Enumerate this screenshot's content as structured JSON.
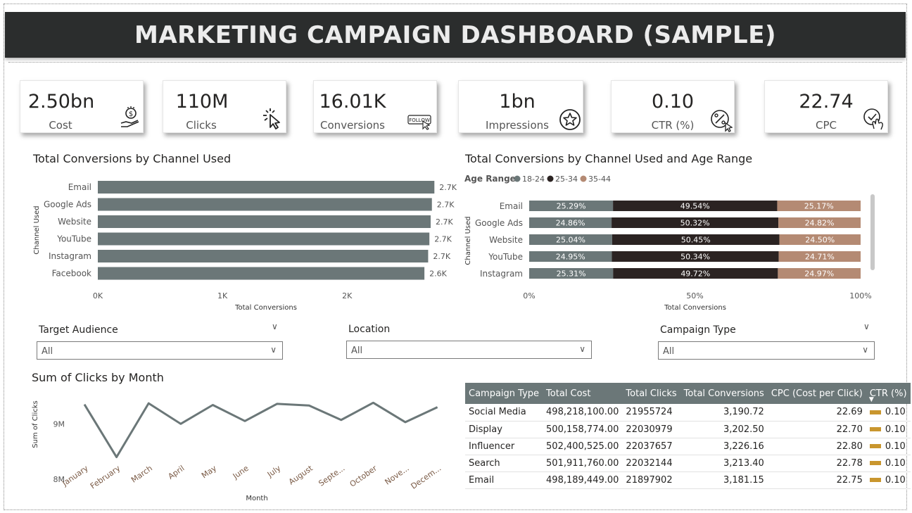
{
  "header": {
    "title": "MARKETING CAMPAIGN DASHBOARD (SAMPLE)"
  },
  "kpis": [
    {
      "value": "2.50bn",
      "label": "Cost",
      "icon": "money-hand-icon"
    },
    {
      "value": "110M",
      "label": "Clicks",
      "icon": "cursor-click-icon"
    },
    {
      "value": "16.01K",
      "label": "Conversions",
      "icon": "follow-icon",
      "icon_text": "FOLLOW"
    },
    {
      "value": "1bn",
      "label": "Impressions",
      "icon": "star-circle-icon"
    },
    {
      "value": "0.10",
      "label": "CTR (%)",
      "icon": "percent-cursor-icon"
    },
    {
      "value": "22.74",
      "label": "CPC",
      "icon": "check-hand-icon"
    }
  ],
  "colors": {
    "bar": "#6b7778",
    "age_18_24": "#6b7778",
    "age_25_34": "#2b2322",
    "age_35_44": "#b48a73",
    "line": "#6b7778",
    "ctr_bar": "#c9962e"
  },
  "chart_data": [
    {
      "type": "bar",
      "orientation": "horizontal",
      "title": "Total Conversions by Channel Used",
      "xlabel": "Total Conversions",
      "ylabel": "Channel Used",
      "categories": [
        "Email",
        "Google Ads",
        "Website",
        "YouTube",
        "Instagram",
        "Facebook"
      ],
      "values": [
        2700,
        2680,
        2670,
        2660,
        2650,
        2620
      ],
      "data_labels": [
        "2.7K",
        "2.7K",
        "2.7K",
        "2.7K",
        "2.7K",
        "2.6K"
      ],
      "xlim": [
        0,
        2800
      ],
      "xticks": [
        0,
        1000,
        2000
      ],
      "xtick_labels": [
        "0K",
        "1K",
        "2K"
      ],
      "grid": false
    },
    {
      "type": "bar",
      "orientation": "horizontal",
      "stacked": "100%",
      "title": "Total Conversions by Channel Used and Age Range",
      "xlabel": "Total Conversions",
      "ylabel": "Channel Used",
      "legend_title": "Age Range",
      "legend_position": "top-left",
      "categories": [
        "Email",
        "Google Ads",
        "Website",
        "YouTube",
        "Instagram"
      ],
      "series": [
        {
          "name": "18-24",
          "values": [
            25.29,
            24.86,
            25.04,
            24.95,
            25.31
          ]
        },
        {
          "name": "25-34",
          "values": [
            49.54,
            50.32,
            50.45,
            50.34,
            49.72
          ]
        },
        {
          "name": "35-44",
          "values": [
            25.17,
            24.82,
            24.5,
            24.71,
            24.97
          ]
        }
      ],
      "xticks": [
        0,
        50,
        100
      ],
      "xtick_labels": [
        "0%",
        "50%",
        "100%"
      ]
    },
    {
      "type": "line",
      "title": "Sum of Clicks by Month",
      "xlabel": "Month",
      "ylabel": "Sum of Clicks",
      "categories": [
        "January",
        "February",
        "March",
        "April",
        "May",
        "June",
        "July",
        "August",
        "Septe...",
        "October",
        "Nove...",
        "Decem..."
      ],
      "values": [
        9350000,
        8400000,
        9370000,
        9000000,
        9340000,
        9050000,
        9360000,
        9330000,
        9070000,
        9380000,
        9030000,
        9300000
      ],
      "ylim": [
        7950000,
        9600000
      ],
      "yticks": [
        8000000,
        9000000
      ],
      "ytick_labels": [
        "8M",
        "9M"
      ]
    }
  ],
  "slicers": [
    {
      "title": "Target Audience",
      "value": "All"
    },
    {
      "title": "Location",
      "value": "All"
    },
    {
      "title": "Campaign Type",
      "value": "All"
    }
  ],
  "table": {
    "headers": [
      "Campaign Type",
      "Total Cost",
      "Total Clicks",
      "Total Conversions",
      "CPC (Cost per Click)",
      "CTR (%)"
    ],
    "rows": [
      [
        "Social Media",
        "498,218,100.00",
        "21955724",
        "3,190.72",
        "22.69",
        "0.10"
      ],
      [
        "Display",
        "500,158,774.00",
        "22030979",
        "3,202.50",
        "22.70",
        "0.10"
      ],
      [
        "Influencer",
        "502,400,525.00",
        "22037657",
        "3,226.16",
        "22.80",
        "0.10"
      ],
      [
        "Search",
        "501,911,760.00",
        "22032144",
        "3,213.40",
        "22.78",
        "0.10"
      ],
      [
        "Email",
        "498,189,449.00",
        "21897902",
        "3,181.15",
        "22.75",
        "0.10"
      ]
    ]
  }
}
